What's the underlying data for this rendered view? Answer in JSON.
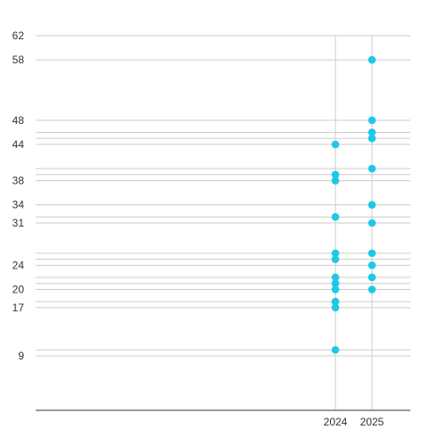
{
  "chart_data": {
    "type": "scatter",
    "title": "",
    "xlabel": "",
    "ylabel": "",
    "categories": [
      "2024",
      "2025"
    ],
    "y_ticks": [
      9,
      17,
      20,
      24,
      31,
      34,
      38,
      44,
      48,
      58,
      62
    ],
    "ylim": [
      0,
      62
    ],
    "grid": true,
    "legend": "none",
    "point_color": "#1ec8e8",
    "series": [
      {
        "category": "2024",
        "values": [
          44,
          39,
          38,
          32,
          26,
          25,
          22,
          21,
          20,
          18,
          17,
          10
        ]
      },
      {
        "category": "2025",
        "values": [
          58,
          48,
          46,
          45,
          40,
          34,
          31,
          26,
          24,
          22,
          20
        ]
      }
    ]
  }
}
